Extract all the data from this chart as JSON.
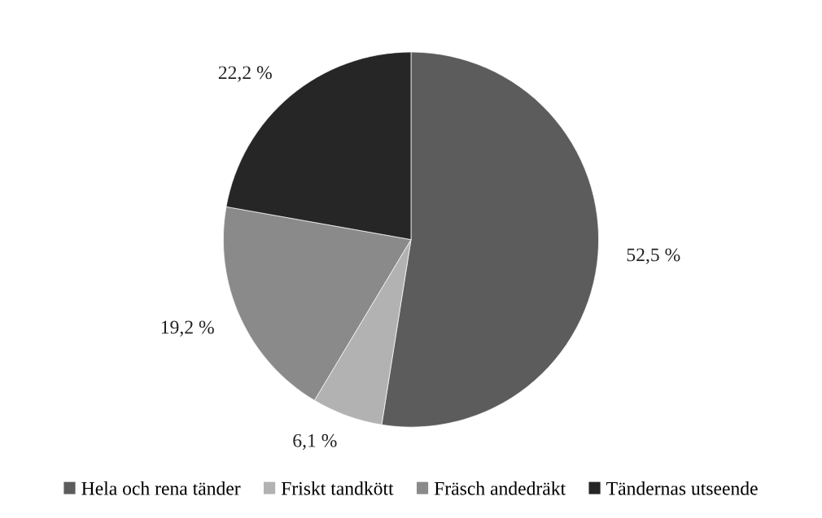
{
  "chart_data": {
    "type": "pie",
    "categories": [
      "Hela och rena tänder",
      "Friskt tandkött",
      "Fräsch andedräkt",
      "Tändernas utseende"
    ],
    "values": [
      52.5,
      6.1,
      19.2,
      22.2
    ],
    "colors": [
      "#5c5c5c",
      "#b2b2b2",
      "#8a8a8a",
      "#262626"
    ],
    "value_labels": [
      "52,5 %",
      "6,1 %",
      "19,2 %",
      "22,2 %"
    ],
    "legend": "bottom"
  }
}
